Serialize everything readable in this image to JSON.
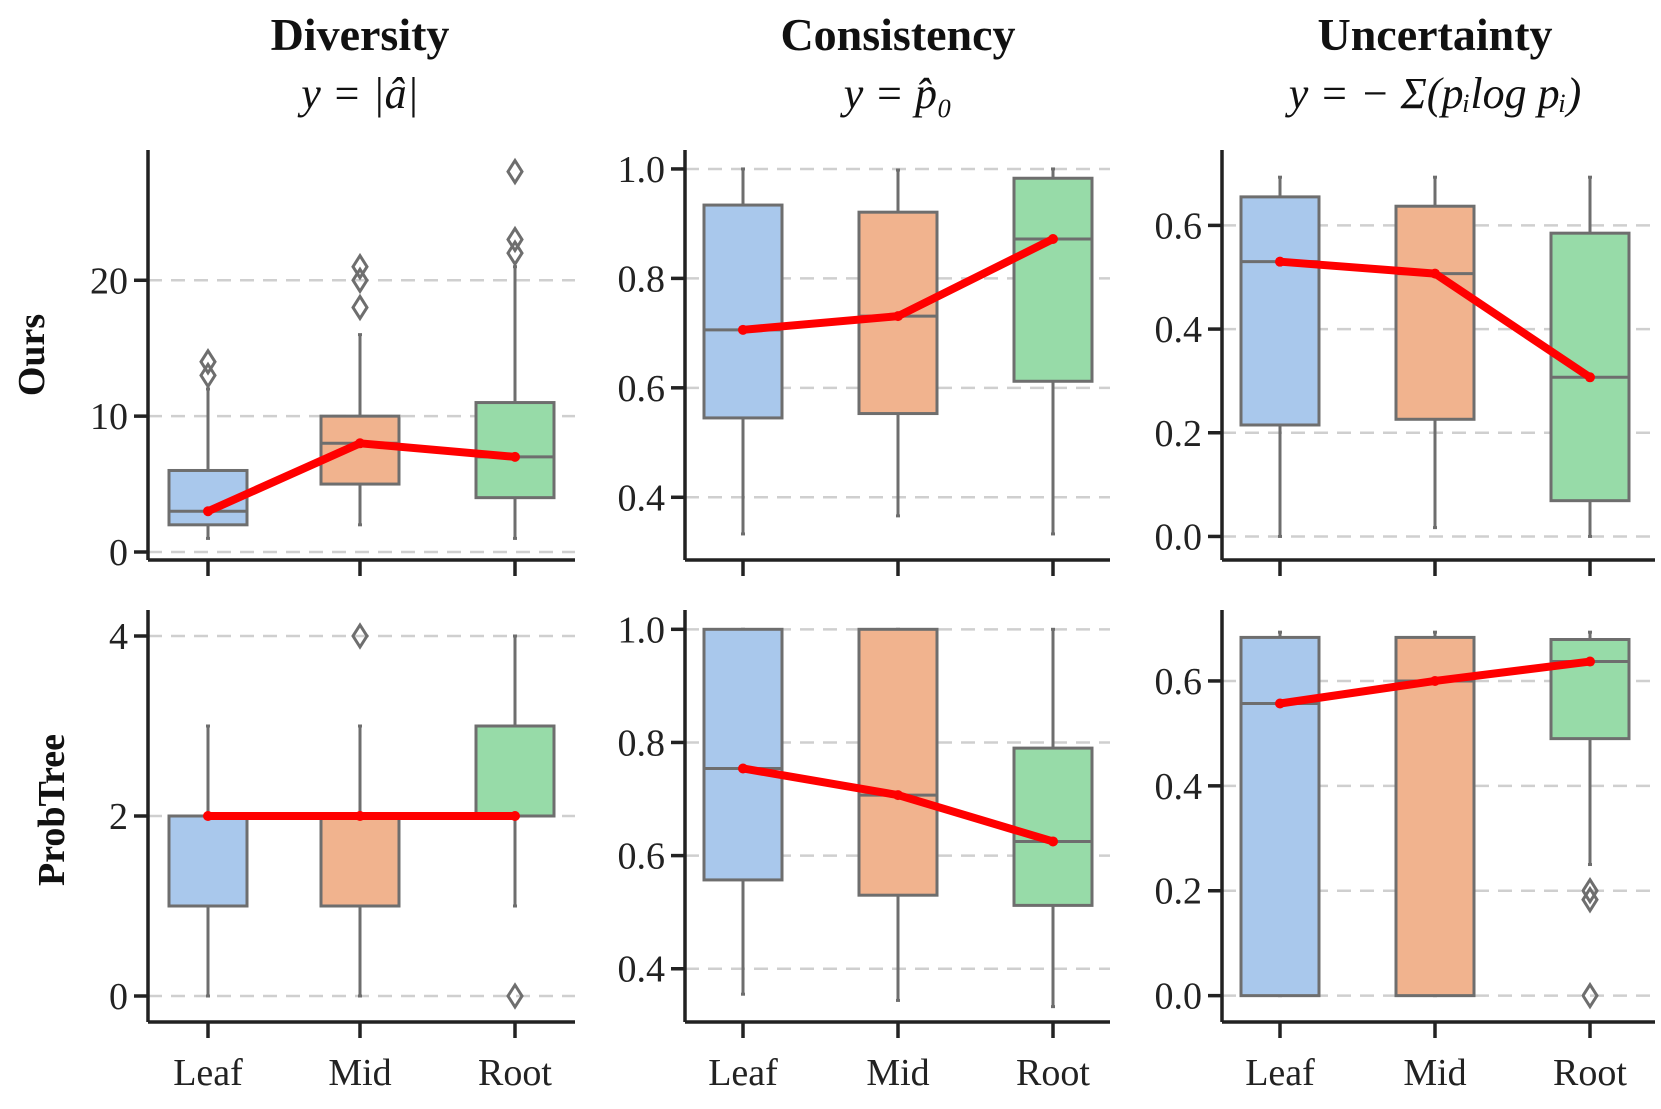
{
  "figure": {
    "columns": [
      {
        "title": "Diversity",
        "subtitle": "y = |â|"
      },
      {
        "title": "Consistency",
        "subtitle": "y = p̂₀"
      },
      {
        "title": "Uncertainty",
        "subtitle": "y = − Σ(pᵢlog pᵢ)"
      }
    ],
    "rows": [
      {
        "label": "Ours"
      },
      {
        "label": "ProbTree"
      }
    ],
    "categories": [
      "Leaf",
      "Mid",
      "Root"
    ]
  },
  "colors": {
    "Leaf": "#a9c8ec",
    "Mid": "#f1b38e",
    "Root": "#97dba8",
    "trend": "#ff0000"
  },
  "chart_data": [
    {
      "type": "box",
      "row": "Ours",
      "column": "Diversity",
      "ylim": [
        0,
        29
      ],
      "yticks": [
        0,
        10,
        20
      ],
      "tick_decimals": 0,
      "categories": [
        "Leaf",
        "Mid",
        "Root"
      ],
      "boxes": [
        {
          "category": "Leaf",
          "whisker_low": 1,
          "q1": 2,
          "median": 3,
          "q3": 6,
          "whisker_high": 12,
          "fliers": [
            13,
            14
          ]
        },
        {
          "category": "Mid",
          "whisker_low": 2,
          "q1": 5,
          "median": 8,
          "q3": 10,
          "whisker_high": 16,
          "fliers": [
            18,
            20,
            21
          ]
        },
        {
          "category": "Root",
          "whisker_low": 1,
          "q1": 4,
          "median": 7,
          "q3": 11,
          "whisker_high": 21,
          "fliers": [
            22,
            23,
            28
          ]
        }
      ],
      "trend": [
        3,
        8,
        7
      ]
    },
    {
      "type": "box",
      "row": "Ours",
      "column": "Consistency",
      "ylim": [
        0.3,
        1.02
      ],
      "yticks": [
        0.4,
        0.6,
        0.8,
        1.0
      ],
      "tick_decimals": 1,
      "categories": [
        "Leaf",
        "Mid",
        "Root"
      ],
      "boxes": [
        {
          "category": "Leaf",
          "whisker_low": 0.333,
          "q1": 0.545,
          "median": 0.706,
          "q3": 0.934,
          "whisker_high": 1.0,
          "fliers": []
        },
        {
          "category": "Mid",
          "whisker_low": 0.366,
          "q1": 0.553,
          "median": 0.731,
          "q3": 0.921,
          "whisker_high": 0.998,
          "fliers": []
        },
        {
          "category": "Root",
          "whisker_low": 0.333,
          "q1": 0.612,
          "median": 0.872,
          "q3": 0.983,
          "whisker_high": 1.0,
          "fliers": []
        }
      ],
      "trend": [
        0.706,
        0.731,
        0.872
      ]
    },
    {
      "type": "box",
      "row": "Ours",
      "column": "Uncertainty",
      "ylim": [
        -0.03,
        0.73
      ],
      "yticks": [
        0.0,
        0.2,
        0.4,
        0.6
      ],
      "tick_decimals": 1,
      "categories": [
        "Leaf",
        "Mid",
        "Root"
      ],
      "boxes": [
        {
          "category": "Leaf",
          "whisker_low": 0.0,
          "q1": 0.215,
          "median": 0.53,
          "q3": 0.655,
          "whisker_high": 0.693,
          "fliers": []
        },
        {
          "category": "Mid",
          "whisker_low": 0.017,
          "q1": 0.226,
          "median": 0.507,
          "q3": 0.637,
          "whisker_high": 0.693,
          "fliers": []
        },
        {
          "category": "Root",
          "whisker_low": 0.0,
          "q1": 0.069,
          "median": 0.307,
          "q3": 0.585,
          "whisker_high": 0.693,
          "fliers": []
        }
      ],
      "trend": [
        0.53,
        0.507,
        0.307
      ]
    },
    {
      "type": "box",
      "row": "ProbTree",
      "column": "Diversity",
      "ylim": [
        -0.2,
        4.2
      ],
      "yticks": [
        0,
        2,
        4
      ],
      "tick_decimals": 0,
      "categories": [
        "Leaf",
        "Mid",
        "Root"
      ],
      "boxes": [
        {
          "category": "Leaf",
          "whisker_low": 0,
          "q1": 1,
          "median": 2,
          "q3": 2,
          "whisker_high": 3,
          "fliers": []
        },
        {
          "category": "Mid",
          "whisker_low": 0,
          "q1": 1,
          "median": 2,
          "q3": 2,
          "whisker_high": 3,
          "fliers": [
            4
          ]
        },
        {
          "category": "Root",
          "whisker_low": 1,
          "q1": 2,
          "median": 2,
          "q3": 3,
          "whisker_high": 4,
          "fliers": [
            0
          ]
        }
      ],
      "trend": [
        2,
        2,
        2
      ]
    },
    {
      "type": "box",
      "row": "ProbTree",
      "column": "Consistency",
      "ylim": [
        0.32,
        1.02
      ],
      "yticks": [
        0.4,
        0.6,
        0.8,
        1.0
      ],
      "tick_decimals": 1,
      "categories": [
        "Leaf",
        "Mid",
        "Root"
      ],
      "boxes": [
        {
          "category": "Leaf",
          "whisker_low": 0.355,
          "q1": 0.557,
          "median": 0.754,
          "q3": 1.0,
          "whisker_high": 1.0,
          "fliers": []
        },
        {
          "category": "Mid",
          "whisker_low": 0.344,
          "q1": 0.53,
          "median": 0.707,
          "q3": 1.0,
          "whisker_high": 1.0,
          "fliers": []
        },
        {
          "category": "Root",
          "whisker_low": 0.333,
          "q1": 0.512,
          "median": 0.625,
          "q3": 0.79,
          "whisker_high": 1.0,
          "fliers": []
        }
      ],
      "trend": [
        0.754,
        0.707,
        0.625
      ]
    },
    {
      "type": "box",
      "row": "ProbTree",
      "column": "Uncertainty",
      "ylim": [
        -0.035,
        0.72
      ],
      "yticks": [
        0.0,
        0.2,
        0.4,
        0.6
      ],
      "tick_decimals": 1,
      "categories": [
        "Leaf",
        "Mid",
        "Root"
      ],
      "boxes": [
        {
          "category": "Leaf",
          "whisker_low": 0.0,
          "q1": 0.0,
          "median": 0.557,
          "q3": 0.683,
          "whisker_high": 0.693,
          "fliers": []
        },
        {
          "category": "Mid",
          "whisker_low": 0.0,
          "q1": 0.0,
          "median": 0.6,
          "q3": 0.683,
          "whisker_high": 0.693,
          "fliers": []
        },
        {
          "category": "Root",
          "whisker_low": 0.25,
          "q1": 0.49,
          "median": 0.637,
          "q3": 0.679,
          "whisker_high": 0.693,
          "fliers": [
            0.0,
            0.183,
            0.2
          ]
        }
      ],
      "trend": [
        0.557,
        0.6,
        0.637
      ]
    }
  ]
}
